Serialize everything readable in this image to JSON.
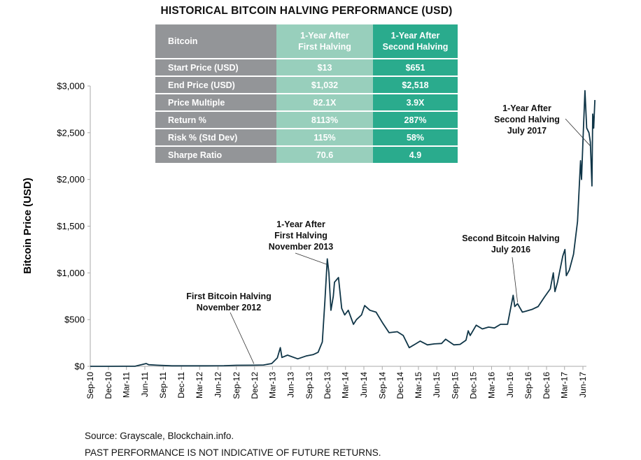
{
  "chart_data": {
    "type": "line",
    "title": "HISTORICAL BITCOIN HALVING PERFORMANCE (USD)",
    "xlabel": "",
    "ylabel": "Bitcoin Price (USD)",
    "ylim": [
      0,
      3000
    ],
    "yticks": [
      "$0",
      "$500",
      "$1,000",
      "$1,500",
      "$2,000",
      "$2,500",
      "$3,000"
    ],
    "ytick_values": [
      0,
      500,
      1000,
      1500,
      2000,
      2500,
      3000
    ],
    "xlim": [
      "2010-09-01",
      "2017-07-31"
    ],
    "xticks": [
      "Sep-10",
      "Dec-10",
      "Mar-11",
      "Jun-11",
      "Sep-11",
      "Dec-11",
      "Mar-12",
      "Jun-12",
      "Sep-12",
      "Dec-12",
      "Mar-13",
      "Jun-13",
      "Sep-13",
      "Dec-13",
      "Mar-14",
      "Jun-14",
      "Sep-14",
      "Dec-14",
      "Mar-15",
      "Jun-15",
      "Sep-15",
      "Dec-15",
      "Mar-16",
      "Jun-16",
      "Sep-16",
      "Dec-16",
      "Mar-17",
      "Jun-17"
    ],
    "xtick_dates": [
      "2010-09-01",
      "2010-12-01",
      "2011-03-01",
      "2011-06-01",
      "2011-09-01",
      "2011-12-01",
      "2012-03-01",
      "2012-06-01",
      "2012-09-01",
      "2012-12-01",
      "2013-03-01",
      "2013-06-01",
      "2013-09-01",
      "2013-12-01",
      "2014-03-01",
      "2014-06-01",
      "2014-09-01",
      "2014-12-01",
      "2015-03-01",
      "2015-06-01",
      "2015-09-01",
      "2015-12-01",
      "2016-03-01",
      "2016-06-01",
      "2016-09-01",
      "2016-12-01",
      "2017-03-01",
      "2017-06-01"
    ],
    "grid": false,
    "line_color": "#0f3547",
    "series": [
      {
        "x": [
          "2010-09-01",
          "2010-12-01",
          "2011-02-15",
          "2011-04-15",
          "2011-06-08",
          "2011-06-20",
          "2011-08-01",
          "2011-10-15",
          "2012-01-01",
          "2012-04-01",
          "2012-07-01",
          "2012-09-01",
          "2012-11-28",
          "2013-01-15",
          "2013-02-25",
          "2013-03-25",
          "2013-04-09",
          "2013-04-17",
          "2013-05-15",
          "2013-07-05",
          "2013-08-15",
          "2013-09-20",
          "2013-10-15",
          "2013-11-05",
          "2013-11-18",
          "2013-11-30",
          "2013-12-08",
          "2013-12-18",
          "2013-12-30",
          "2014-01-05",
          "2014-01-25",
          "2014-02-10",
          "2014-02-25",
          "2014-03-15",
          "2014-04-10",
          "2014-04-25",
          "2014-05-20",
          "2014-06-05",
          "2014-07-01",
          "2014-08-01",
          "2014-09-01",
          "2014-10-05",
          "2014-11-15",
          "2014-12-15",
          "2015-01-14",
          "2015-02-15",
          "2015-03-10",
          "2015-04-15",
          "2015-05-20",
          "2015-06-25",
          "2015-07-15",
          "2015-08-25",
          "2015-09-25",
          "2015-10-25",
          "2015-11-05",
          "2015-11-15",
          "2015-12-15",
          "2016-01-15",
          "2016-02-15",
          "2016-03-15",
          "2016-04-15",
          "2016-05-20",
          "2016-06-17",
          "2016-06-25",
          "2016-07-09",
          "2016-08-02",
          "2016-08-20",
          "2016-09-20",
          "2016-10-20",
          "2016-11-20",
          "2016-12-20",
          "2017-01-04",
          "2017-01-12",
          "2017-01-25",
          "2017-02-20",
          "2017-03-03",
          "2017-03-10",
          "2017-03-25",
          "2017-04-15",
          "2017-05-05",
          "2017-05-20",
          "2017-05-25",
          "2017-06-01",
          "2017-06-11",
          "2017-06-20",
          "2017-07-01",
          "2017-07-08",
          "2017-07-16",
          "2017-07-20",
          "2017-07-25",
          "2017-07-31"
        ],
        "y": [
          0.06,
          0.25,
          1,
          1.5,
          30,
          17,
          12,
          5,
          5,
          5,
          7,
          11,
          12,
          14,
          30,
          90,
          200,
          95,
          120,
          80,
          110,
          125,
          150,
          260,
          700,
          1150,
          1000,
          600,
          750,
          900,
          950,
          620,
          550,
          600,
          450,
          500,
          550,
          650,
          600,
          580,
          470,
          360,
          370,
          330,
          200,
          240,
          270,
          230,
          240,
          245,
          290,
          230,
          235,
          280,
          380,
          330,
          440,
          400,
          420,
          410,
          450,
          450,
          760,
          640,
          670,
          580,
          590,
          610,
          640,
          740,
          830,
          1000,
          800,
          900,
          1180,
          1250,
          970,
          1030,
          1200,
          1550,
          2200,
          2000,
          2400,
          2950,
          2550,
          2500,
          2400,
          1930,
          2700,
          2550,
          2850
        ]
      }
    ],
    "annotations": [
      {
        "lines": [
          "First Bitcoin Halving",
          "November 2012"
        ],
        "date": "2012-11-28"
      },
      {
        "lines": [
          "1-Year After",
          "First Halving",
          "November 2013"
        ],
        "date": "2013-11-28"
      },
      {
        "lines": [
          "Second Bitcoin Halving",
          "July 2016"
        ],
        "date": "2016-07-09"
      },
      {
        "lines": [
          "1-Year After",
          "Second Halving",
          "July 2017"
        ],
        "date": "2017-07-09"
      }
    ]
  },
  "table": {
    "header": [
      "Bitcoin",
      "1-Year After\nFirst Halving",
      "1-Year After\nSecond Halving"
    ],
    "header_lines": [
      [
        "Bitcoin"
      ],
      [
        "1-Year After",
        "First Halving"
      ],
      [
        "1-Year After",
        "Second Halving"
      ]
    ],
    "rows": [
      [
        "Start Price (USD)",
        "$13",
        "$651"
      ],
      [
        "End Price (USD)",
        "$1,032",
        "$2,518"
      ],
      [
        "Price Multiple",
        "82.1X",
        "3.9X"
      ],
      [
        "Return %",
        "8113%",
        "287%"
      ],
      [
        "Risk % (Std Dev)",
        "115%",
        "58%"
      ],
      [
        "Sharpe Ratio",
        "70.6",
        "4.9"
      ]
    ],
    "colors": {
      "label_col": "#939598",
      "first_col": "#98cfbc",
      "second_col": "#2aab8d"
    }
  },
  "footer": {
    "source": "Source: Grayscale, Blockchain.info.",
    "disclaimer": "PAST PERFORMANCE IS NOT INDICATIVE OF FUTURE RETURNS."
  }
}
